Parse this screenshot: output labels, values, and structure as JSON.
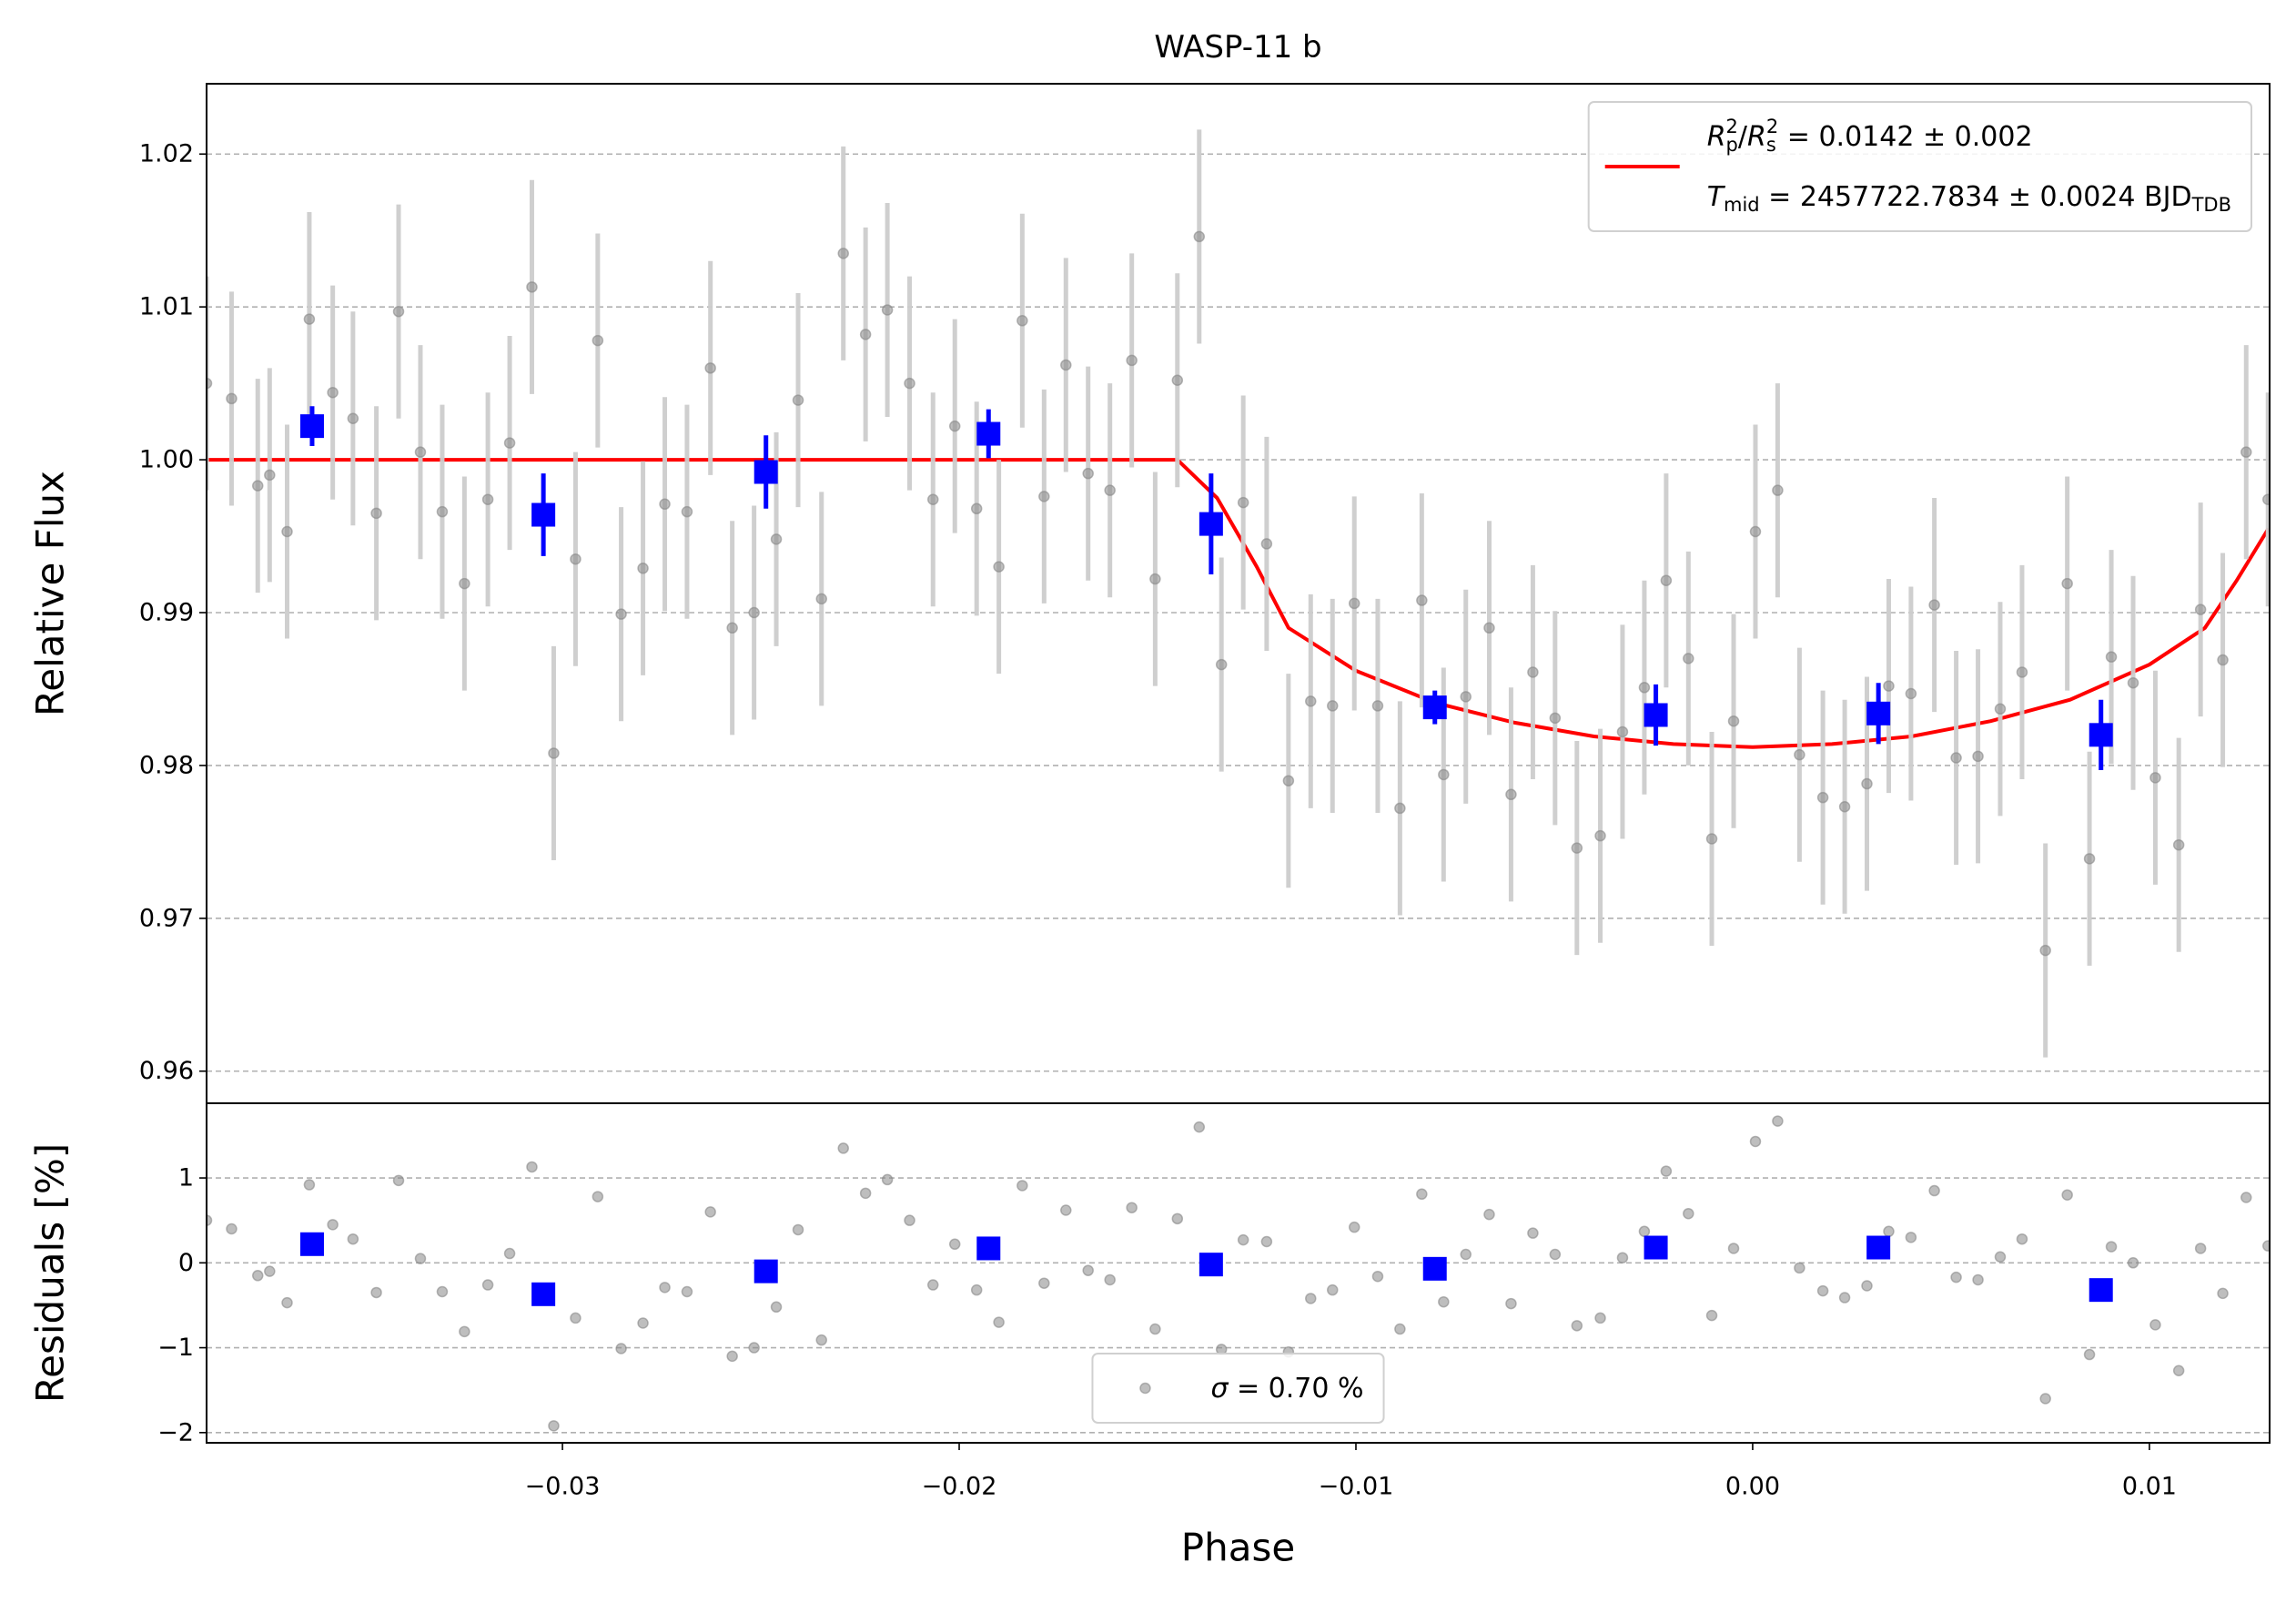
{
  "chart_data": [
    {
      "type": "scatter",
      "title": "WASP-11 b",
      "ylabel": "Relative Flux",
      "xlim": [
        -0.03897,
        0.01303
      ],
      "ylim": [
        0.9579,
        1.0246
      ],
      "yticks": [
        0.96,
        0.97,
        0.98,
        0.99,
        {
          "value": 1.0,
          "label": "1.00"
        },
        1.01,
        1.02
      ],
      "grid": true,
      "legend": "upper right",
      "series": [
        {
          "type": "line",
          "color": "#ff0000",
          "label": [
            {
              "text": "R",
              "style": "italic"
            },
            {
              "text": "p",
              "style": "sub"
            },
            {
              "text": "2",
              "style": "sup"
            },
            {
              "text": "/",
              "style": "normal"
            },
            {
              "text": "R",
              "style": "italic"
            },
            {
              "text": "s",
              "style": "sub"
            },
            {
              "text": "2",
              "style": "sup"
            },
            {
              "text": " = 0.0142 ± 0.002",
              "style": "normal"
            }
          ],
          "label2": [
            {
              "text": "T",
              "style": "italic"
            },
            {
              "text": "mid",
              "style": "sub"
            },
            {
              "text": " = 2457722.7834 ± 0.0024 BJD",
              "style": "normal"
            },
            {
              "text": "TDB",
              "style": "sub"
            }
          ],
          "x": [
            -0.039,
            -0.0145,
            -0.0135,
            -0.0125,
            -0.0117,
            -0.01,
            -0.008,
            -0.006,
            -0.004,
            -0.002,
            0,
            0.002,
            0.004,
            0.006,
            0.008,
            0.01,
            0.0114,
            0.0122,
            0.013
          ],
          "values": [
            1.0,
            1.0,
            0.9975,
            0.993,
            0.989,
            0.9862,
            0.9841,
            0.9828,
            0.9819,
            0.9814,
            0.9812,
            0.9814,
            0.9819,
            0.9829,
            0.9843,
            0.9866,
            0.989,
            0.9921,
            0.9955
          ]
        },
        {
          "type": "errorbar",
          "marker": "circle",
          "color": "#888888",
          "ecolor": "#cccccc",
          "error": 0.007,
          "x": [
            -0.03897,
            -0.03834,
            -0.03768,
            -0.03738,
            -0.03694,
            -0.03638,
            -0.03579,
            -0.03528,
            -0.03469,
            -0.03413,
            -0.03358,
            -0.03303,
            -0.03247,
            -0.03188,
            -0.03133,
            -0.03077,
            -0.03022,
            -0.02967,
            -0.02911,
            -0.02852,
            -0.02797,
            -0.02742,
            -0.02686,
            -0.02627,
            -0.02572,
            -0.02517,
            -0.02461,
            -0.02406,
            -0.02347,
            -0.02292,
            -0.02236,
            -0.02181,
            -0.02125,
            -0.02066,
            -0.02011,
            -0.01956,
            -0.019,
            -0.01841,
            -0.01786,
            -0.01731,
            -0.01675,
            -0.0162,
            -0.01565,
            -0.01506,
            -0.0145,
            -0.01395,
            -0.01339,
            -0.01284,
            -0.01225,
            -0.0117,
            -0.01114,
            -0.01059,
            -0.01004,
            -0.00945,
            -0.00889,
            -0.00834,
            -0.00779,
            -0.00723,
            -0.00664,
            -0.00609,
            -0.00554,
            -0.00498,
            -0.00443,
            -0.00384,
            -0.00328,
            -0.00273,
            -0.00218,
            -0.00162,
            -0.00103,
            -0.00048,
            7e-05,
            0.00063,
            0.00118,
            0.00177,
            0.00232,
            0.00288,
            0.00343,
            0.00399,
            0.00458,
            0.00513,
            0.00568,
            0.00624,
            0.00679,
            0.00738,
            0.00793,
            0.00849,
            0.00904,
            0.00959,
            0.01015,
            0.01074,
            0.01129,
            0.01185,
            0.01244,
            0.01299
          ],
          "values": [
            1.005,
            1.004,
            0.9983,
            0.999,
            0.9953,
            1.0092,
            1.0044,
            1.0027,
            0.9965,
            1.0097,
            1.0005,
            0.9966,
            0.9919,
            0.9974,
            1.0011,
            1.0113,
            0.9808,
            0.9935,
            1.0078,
            0.9899,
            0.9929,
            0.9971,
            0.9966,
            1.006,
            0.989,
            0.99,
            0.9948,
            1.0039,
            0.9909,
            1.0135,
            1.0082,
            1.0098,
            1.005,
            0.9974,
            1.0022,
            0.9968,
            0.993,
            1.0091,
            0.9976,
            1.0062,
            0.9991,
            0.998,
            1.0065,
            0.9922,
            1.0052,
            1.0146,
            0.9866,
            0.9972,
            0.9945,
            0.979,
            0.9842,
            0.9839,
            0.9906,
            0.9839,
            0.9772,
            0.9908,
            0.9794,
            0.9845,
            0.989,
            0.9781,
            0.9861,
            0.9831,
            0.9746,
            0.9754,
            0.9822,
            0.9851,
            0.9921,
            0.987,
            0.9752,
            0.9829,
            0.9953,
            0.998,
            0.9807,
            0.9779,
            0.9773,
            0.9788,
            0.9852,
            0.9847,
            0.9905,
            0.9805,
            0.9806,
            0.9837,
            0.9861,
            0.9679,
            0.9919,
            0.9739,
            0.9871,
            0.9854,
            0.9792,
            0.9748,
            0.9902,
            0.9869,
            1.0005,
            0.9974
          ]
        },
        {
          "type": "errorbar",
          "marker": "square",
          "color": "#0000ff",
          "ecolor": "#0000ff",
          "x": [
            -0.03631,
            -0.03048,
            -0.02487,
            -0.01926,
            -0.01365,
            -0.00801,
            -0.00244,
            0.00317,
            0.00878
          ],
          "values": [
            1.0022,
            0.9964,
            0.9992,
            1.0017,
            0.9958,
            0.9838,
            0.9833,
            0.9834,
            0.982
          ],
          "errors": [
            0.0013,
            0.0027,
            0.0024,
            0.0016,
            0.0033,
            0.0011,
            0.002,
            0.002,
            0.0023
          ]
        }
      ]
    },
    {
      "type": "scatter",
      "xlabel": "Phase",
      "ylabel": "Residuals [%]",
      "xlim": [
        -0.03897,
        0.01303
      ],
      "ylim": [
        -2.12,
        1.88
      ],
      "xticks": [
        {
          "value": -0.03,
          "label": "−0.03"
        },
        {
          "value": -0.02,
          "label": "−0.02"
        },
        {
          "value": -0.01,
          "label": "−0.01"
        },
        {
          "value": 0,
          "label": "0.00"
        },
        0.01
      ],
      "yticks": [
        {
          "value": -2,
          "label": "−2"
        },
        {
          "value": -1,
          "label": "−1"
        },
        0,
        1
      ],
      "grid": true,
      "legend": "lower center",
      "series": [
        {
          "type": "errorbar",
          "marker": "circle",
          "color": "#888888",
          "label": [
            {
              "text": "σ",
              "style": "italic"
            },
            {
              "text": " = 0.70 %",
              "style": "normal"
            }
          ],
          "x": [
            -0.03897,
            -0.03834,
            -0.03768,
            -0.03738,
            -0.03694,
            -0.03638,
            -0.03579,
            -0.03528,
            -0.03469,
            -0.03413,
            -0.03358,
            -0.03303,
            -0.03247,
            -0.03188,
            -0.03133,
            -0.03077,
            -0.03022,
            -0.02967,
            -0.02911,
            -0.02852,
            -0.02797,
            -0.02742,
            -0.02686,
            -0.02627,
            -0.02572,
            -0.02517,
            -0.02461,
            -0.02406,
            -0.02347,
            -0.02292,
            -0.02236,
            -0.02181,
            -0.02125,
            -0.02066,
            -0.02011,
            -0.01956,
            -0.019,
            -0.01841,
            -0.01786,
            -0.01731,
            -0.01675,
            -0.0162,
            -0.01565,
            -0.01506,
            -0.0145,
            -0.01395,
            -0.01339,
            -0.01284,
            -0.01225,
            -0.0117,
            -0.01114,
            -0.01059,
            -0.01004,
            -0.00945,
            -0.00889,
            -0.00834,
            -0.00779,
            -0.00723,
            -0.00664,
            -0.00609,
            -0.00554,
            -0.00498,
            -0.00443,
            -0.00384,
            -0.00328,
            -0.00273,
            -0.00218,
            -0.00162,
            -0.00103,
            -0.00048,
            7e-05,
            0.00063,
            0.00118,
            0.00177,
            0.00232,
            0.00288,
            0.00343,
            0.00399,
            0.00458,
            0.00513,
            0.00568,
            0.00624,
            0.00679,
            0.00738,
            0.00793,
            0.00849,
            0.00904,
            0.00959,
            0.01015,
            0.01074,
            0.01129,
            0.01185,
            0.01244,
            0.01299
          ],
          "values": [
            0.5,
            0.4,
            -0.15,
            -0.1,
            -0.47,
            0.92,
            0.45,
            0.28,
            -0.35,
            0.97,
            0.05,
            -0.34,
            -0.81,
            -0.26,
            0.11,
            1.13,
            -1.92,
            -0.65,
            0.78,
            -1.01,
            -0.71,
            -0.29,
            -0.34,
            0.6,
            -1.1,
            -1.0,
            -0.52,
            0.39,
            -0.91,
            1.35,
            0.82,
            0.98,
            0.5,
            -0.26,
            0.22,
            -0.32,
            -0.7,
            0.91,
            -0.24,
            0.62,
            -0.09,
            -0.2,
            0.65,
            -0.78,
            0.52,
            1.6,
            -1.02,
            0.27,
            0.25,
            -1.05,
            -0.42,
            -0.32,
            0.42,
            -0.16,
            -0.78,
            0.81,
            -0.46,
            0.1,
            0.57,
            -0.48,
            0.35,
            0.1,
            -0.74,
            -0.65,
            0.06,
            0.37,
            1.08,
            0.58,
            -0.62,
            0.17,
            1.43,
            1.67,
            -0.06,
            -0.33,
            -0.41,
            -0.27,
            0.37,
            0.3,
            0.85,
            -0.17,
            -0.2,
            0.07,
            0.28,
            -1.6,
            0.8,
            -1.08,
            0.19,
            0.0,
            -0.73,
            -1.27,
            0.17,
            -0.36,
            0.77,
            0.2
          ]
        },
        {
          "type": "errorbar",
          "marker": "square",
          "color": "#0000ff",
          "x": [
            -0.03631,
            -0.03048,
            -0.02487,
            -0.01926,
            -0.01365,
            -0.00801,
            -0.00244,
            0.00317,
            0.00878
          ],
          "values": [
            0.22,
            -0.37,
            -0.1,
            0.17,
            -0.02,
            -0.07,
            0.18,
            0.18,
            -0.32
          ]
        }
      ]
    }
  ]
}
